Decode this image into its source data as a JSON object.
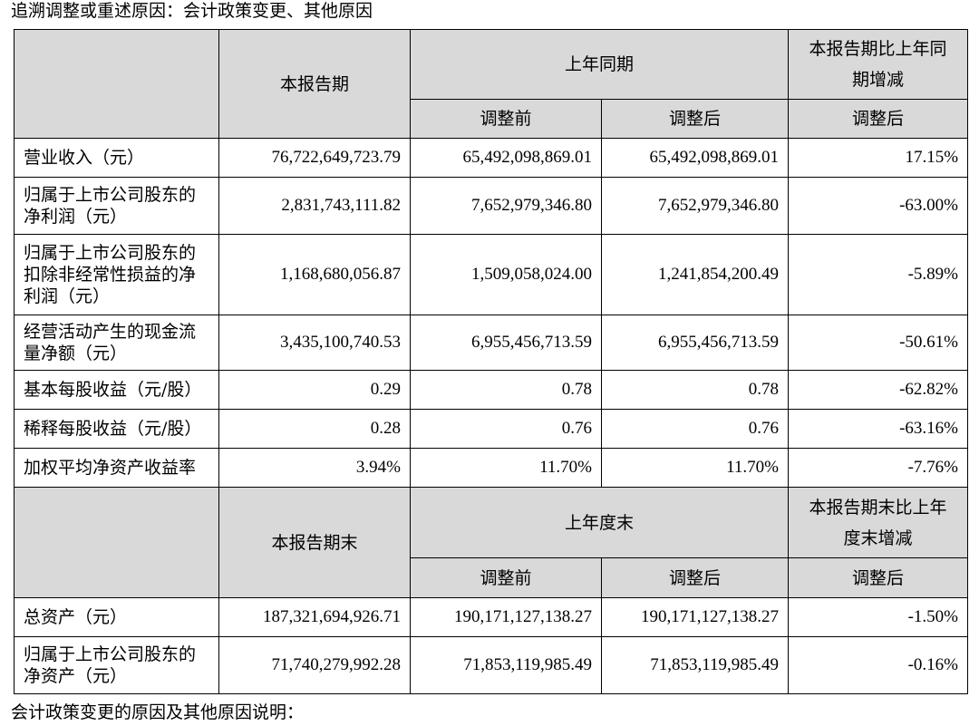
{
  "intro": "追溯调整或重述原因：会计政策变更、其他原因",
  "outro": "会计政策变更的原因及其他原因说明：",
  "header1": {
    "current": "本报告期",
    "prior": "上年同期",
    "change": "本报告期比上年同期增减",
    "before": "调整前",
    "after": "调整后",
    "change_after": "调整后"
  },
  "rows1": [
    {
      "label": "营业收入（元）",
      "current": "76,722,649,723.79",
      "before": "65,492,098,869.01",
      "after": "65,492,098,869.01",
      "change": "17.15%"
    },
    {
      "label": "归属于上市公司股东的净利润（元）",
      "current": "2,831,743,111.82",
      "before": "7,652,979,346.80",
      "after": "7,652,979,346.80",
      "change": "-63.00%"
    },
    {
      "label": "归属于上市公司股东的扣除非经常性损益的净利润（元）",
      "current": "1,168,680,056.87",
      "before": "1,509,058,024.00",
      "after": "1,241,854,200.49",
      "change": "-5.89%"
    },
    {
      "label": "经营活动产生的现金流量净额（元）",
      "current": "3,435,100,740.53",
      "before": "6,955,456,713.59",
      "after": "6,955,456,713.59",
      "change": "-50.61%"
    },
    {
      "label": "基本每股收益（元/股）",
      "current": "0.29",
      "before": "0.78",
      "after": "0.78",
      "change": "-62.82%"
    },
    {
      "label": "稀释每股收益（元/股）",
      "current": "0.28",
      "before": "0.76",
      "after": "0.76",
      "change": "-63.16%"
    },
    {
      "label": "加权平均净资产收益率",
      "current": "3.94%",
      "before": "11.70%",
      "after": "11.70%",
      "change": "-7.76%"
    }
  ],
  "header2": {
    "current": "本报告期末",
    "prior": "上年度末",
    "change": "本报告期末比上年度末增减",
    "before": "调整前",
    "after": "调整后",
    "change_after": "调整后"
  },
  "rows2": [
    {
      "label": "总资产（元）",
      "current": "187,321,694,926.71",
      "before": "190,171,127,138.27",
      "after": "190,171,127,138.27",
      "change": "-1.50%"
    },
    {
      "label": "归属于上市公司股东的净资产（元）",
      "current": "71,740,279,992.28",
      "before": "71,853,119,985.49",
      "after": "71,853,119,985.49",
      "change": "-0.16%"
    }
  ]
}
